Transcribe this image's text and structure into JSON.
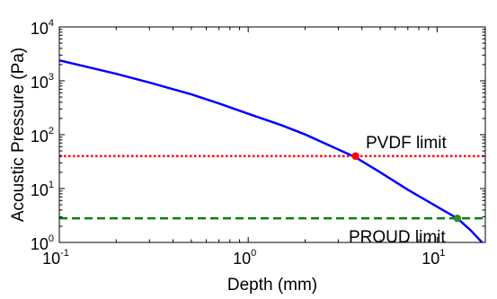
{
  "chart_data": {
    "type": "line",
    "title": "",
    "xlabel": "Depth (mm)",
    "ylabel": "Acoustic Pressure (Pa)",
    "xscale": "log",
    "yscale": "log",
    "xlim": [
      0.1,
      18
    ],
    "ylim": [
      1,
      10000
    ],
    "grid": false,
    "x_ticks": [
      {
        "base": "10",
        "exp": "-1",
        "value": 0.1
      },
      {
        "base": "10",
        "exp": "0",
        "value": 1
      },
      {
        "base": "10",
        "exp": "1",
        "value": 10
      }
    ],
    "y_ticks": [
      {
        "base": "10",
        "exp": "0",
        "value": 1
      },
      {
        "base": "10",
        "exp": "1",
        "value": 10
      },
      {
        "base": "10",
        "exp": "2",
        "value": 100
      },
      {
        "base": "10",
        "exp": "3",
        "value": 1000
      },
      {
        "base": "10",
        "exp": "4",
        "value": 10000
      }
    ],
    "series": [
      {
        "color": "#0000ff",
        "x": [
          0.1,
          0.2,
          0.3,
          0.5,
          0.7,
          1.0,
          1.5,
          2.0,
          3.0,
          3.7,
          5.0,
          7.0,
          10.0,
          12.8,
          15.0,
          17.3
        ],
        "y": [
          2400,
          1350,
          930,
          560,
          380,
          245,
          150,
          101,
          53,
          38,
          20,
          9.5,
          4.6,
          2.8,
          1.7,
          1.0
        ]
      }
    ],
    "thresholds": [
      {
        "label": "PVDF limit",
        "y": 40,
        "color": "#ff0000",
        "style": "dotted"
      },
      {
        "label": "PROUD limit",
        "y": 2.8,
        "color": "#008000",
        "style": "dashed"
      }
    ],
    "points": [
      {
        "x": 3.7,
        "y": 40,
        "color": "#ff0000"
      },
      {
        "x": 12.8,
        "y": 2.8,
        "color": "#2e8b2e"
      }
    ]
  }
}
